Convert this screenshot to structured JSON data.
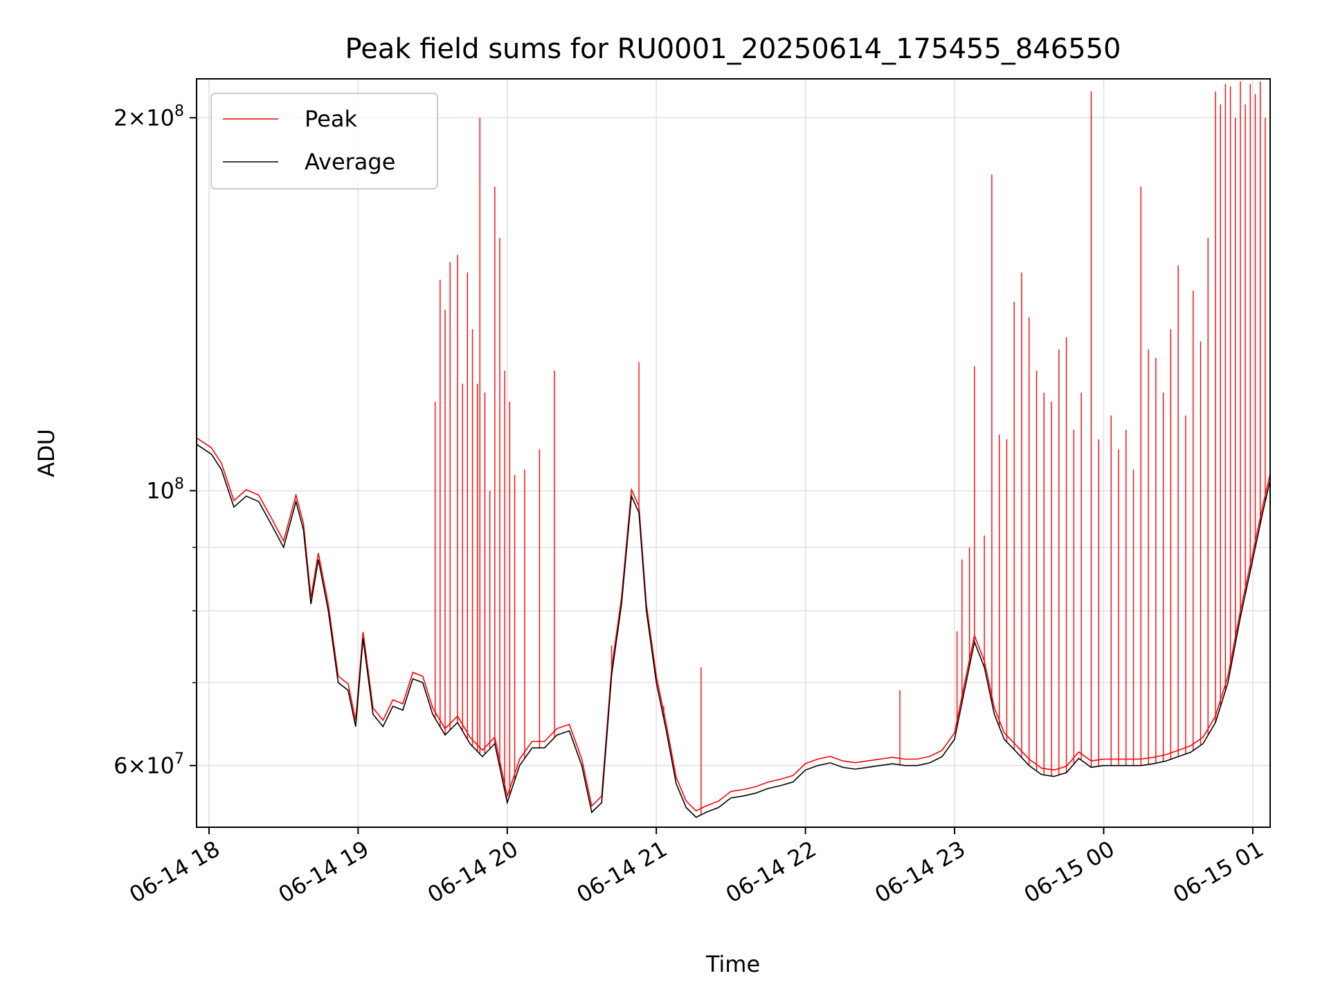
{
  "chart_data": {
    "type": "line",
    "title": "Peak field sums for RU0001_20250614_175455_846550",
    "xlabel": "Time",
    "ylabel": "ADU",
    "xlim": [
      "2025-06-14 17:55",
      "2025-06-15 01:07"
    ],
    "ylim": [
      53500000,
      215000000
    ],
    "yscale": "log",
    "grid": true,
    "legend_position": "top-left",
    "x_ticks": [
      {
        "t": "2025-06-14 18:00",
        "label": "06-14 18"
      },
      {
        "t": "2025-06-14 19:00",
        "label": "06-14 19"
      },
      {
        "t": "2025-06-14 20:00",
        "label": "06-14 20"
      },
      {
        "t": "2025-06-14 21:00",
        "label": "06-14 21"
      },
      {
        "t": "2025-06-14 22:00",
        "label": "06-14 22"
      },
      {
        "t": "2025-06-14 23:00",
        "label": "06-14 23"
      },
      {
        "t": "2025-06-15 00:00",
        "label": "06-15 00"
      },
      {
        "t": "2025-06-15 01:00",
        "label": "06-15 01"
      }
    ],
    "y_major_ticks": [
      {
        "v": 60000000,
        "mantissa": "6",
        "base": "10",
        "exp": "7"
      },
      {
        "v": 100000000,
        "mantissa": "",
        "base": "10",
        "exp": "8"
      },
      {
        "v": 200000000,
        "mantissa": "2",
        "base": "10",
        "exp": "8"
      }
    ],
    "y_minor_ticks": [
      70000000,
      80000000,
      90000000
    ],
    "colors": {
      "peak": "#ff0000",
      "average": "#000000",
      "grid": "#e0e0e0"
    },
    "series": [
      {
        "name": "Average",
        "color": "#000000",
        "points": [
          [
            "2025-06-14 17:55",
            109000000
          ],
          [
            "2025-06-14 17:58",
            108000000
          ],
          [
            "2025-06-14 18:01",
            107000000
          ],
          [
            "2025-06-14 18:05",
            104000000
          ],
          [
            "2025-06-14 18:10",
            97000000
          ],
          [
            "2025-06-14 18:15",
            99000000
          ],
          [
            "2025-06-14 18:20",
            98000000
          ],
          [
            "2025-06-14 18:25",
            94000000
          ],
          [
            "2025-06-14 18:30",
            90000000
          ],
          [
            "2025-06-14 18:35",
            98000000
          ],
          [
            "2025-06-14 18:38",
            93000000
          ],
          [
            "2025-06-14 18:41",
            81000000
          ],
          [
            "2025-06-14 18:44",
            88000000
          ],
          [
            "2025-06-14 18:48",
            80000000
          ],
          [
            "2025-06-14 18:52",
            70000000
          ],
          [
            "2025-06-14 18:56",
            69000000
          ],
          [
            "2025-06-14 18:59",
            64500000
          ],
          [
            "2025-06-14 19:02",
            76000000
          ],
          [
            "2025-06-14 19:06",
            66000000
          ],
          [
            "2025-06-14 19:10",
            64500000
          ],
          [
            "2025-06-14 19:14",
            67000000
          ],
          [
            "2025-06-14 19:18",
            66500000
          ],
          [
            "2025-06-14 19:22",
            70500000
          ],
          [
            "2025-06-14 19:26",
            70000000
          ],
          [
            "2025-06-14 19:30",
            66000000
          ],
          [
            "2025-06-14 19:35",
            63500000
          ],
          [
            "2025-06-14 19:40",
            65000000
          ],
          [
            "2025-06-14 19:45",
            62500000
          ],
          [
            "2025-06-14 19:50",
            61000000
          ],
          [
            "2025-06-14 19:55",
            62500000
          ],
          [
            "2025-06-14 20:00",
            56000000
          ],
          [
            "2025-06-14 20:05",
            60000000
          ],
          [
            "2025-06-14 20:10",
            62000000
          ],
          [
            "2025-06-14 20:15",
            62000000
          ],
          [
            "2025-06-14 20:20",
            63500000
          ],
          [
            "2025-06-14 20:25",
            64000000
          ],
          [
            "2025-06-14 20:30",
            60000000
          ],
          [
            "2025-06-14 20:34",
            55000000
          ],
          [
            "2025-06-14 20:38",
            56000000
          ],
          [
            "2025-06-14 20:42",
            71000000
          ],
          [
            "2025-06-14 20:46",
            81000000
          ],
          [
            "2025-06-14 20:50",
            99000000
          ],
          [
            "2025-06-14 20:53",
            96000000
          ],
          [
            "2025-06-14 20:56",
            80000000
          ],
          [
            "2025-06-14 21:00",
            70000000
          ],
          [
            "2025-06-14 21:04",
            64000000
          ],
          [
            "2025-06-14 21:08",
            58000000
          ],
          [
            "2025-06-14 21:12",
            55500000
          ],
          [
            "2025-06-14 21:16",
            54500000
          ],
          [
            "2025-06-14 21:20",
            55000000
          ],
          [
            "2025-06-14 21:25",
            55500000
          ],
          [
            "2025-06-14 21:30",
            56500000
          ],
          [
            "2025-06-14 21:35",
            56700000
          ],
          [
            "2025-06-14 21:40",
            57000000
          ],
          [
            "2025-06-14 21:45",
            57500000
          ],
          [
            "2025-06-14 21:50",
            57800000
          ],
          [
            "2025-06-14 21:55",
            58200000
          ],
          [
            "2025-06-14 22:00",
            59500000
          ],
          [
            "2025-06-14 22:05",
            60000000
          ],
          [
            "2025-06-14 22:10",
            60300000
          ],
          [
            "2025-06-14 22:15",
            59800000
          ],
          [
            "2025-06-14 22:20",
            59600000
          ],
          [
            "2025-06-14 22:25",
            59800000
          ],
          [
            "2025-06-14 22:30",
            60000000
          ],
          [
            "2025-06-14 22:35",
            60200000
          ],
          [
            "2025-06-14 22:40",
            60000000
          ],
          [
            "2025-06-14 22:45",
            60000000
          ],
          [
            "2025-06-14 22:50",
            60300000
          ],
          [
            "2025-06-14 22:55",
            61000000
          ],
          [
            "2025-06-14 23:00",
            63000000
          ],
          [
            "2025-06-14 23:04",
            69000000
          ],
          [
            "2025-06-14 23:08",
            75500000
          ],
          [
            "2025-06-14 23:12",
            72000000
          ],
          [
            "2025-06-14 23:16",
            66000000
          ],
          [
            "2025-06-14 23:20",
            63000000
          ],
          [
            "2025-06-14 23:25",
            61500000
          ],
          [
            "2025-06-14 23:30",
            60000000
          ],
          [
            "2025-06-14 23:35",
            59000000
          ],
          [
            "2025-06-14 23:40",
            58800000
          ],
          [
            "2025-06-14 23:45",
            59200000
          ],
          [
            "2025-06-14 23:50",
            60800000
          ],
          [
            "2025-06-14 23:55",
            59800000
          ],
          [
            "2025-06-15 00:00",
            60000000
          ],
          [
            "2025-06-15 00:05",
            60000000
          ],
          [
            "2025-06-15 00:10",
            60000000
          ],
          [
            "2025-06-15 00:15",
            60000000
          ],
          [
            "2025-06-15 00:20",
            60200000
          ],
          [
            "2025-06-15 00:25",
            60500000
          ],
          [
            "2025-06-15 00:30",
            61000000
          ],
          [
            "2025-06-15 00:35",
            61500000
          ],
          [
            "2025-06-15 00:40",
            62500000
          ],
          [
            "2025-06-15 00:45",
            65000000
          ],
          [
            "2025-06-15 00:50",
            70000000
          ],
          [
            "2025-06-15 00:55",
            79000000
          ],
          [
            "2025-06-15 01:00",
            88000000
          ],
          [
            "2025-06-15 01:04",
            96000000
          ],
          [
            "2025-06-15 01:07",
            102000000
          ]
        ]
      },
      {
        "name": "Peak",
        "color": "#ff0000",
        "spikes": [
          [
            "2025-06-14 19:31",
            118000000
          ],
          [
            "2025-06-14 19:33",
            148000000
          ],
          [
            "2025-06-14 19:35",
            140000000
          ],
          [
            "2025-06-14 19:37",
            153000000
          ],
          [
            "2025-06-14 19:40",
            155000000
          ],
          [
            "2025-06-14 19:42",
            122000000
          ],
          [
            "2025-06-14 19:44",
            150000000
          ],
          [
            "2025-06-14 19:46",
            135000000
          ],
          [
            "2025-06-14 19:48",
            122000000
          ],
          [
            "2025-06-14 19:49",
            200000000
          ],
          [
            "2025-06-14 19:51",
            120000000
          ],
          [
            "2025-06-14 19:53",
            100000000
          ],
          [
            "2025-06-14 19:55",
            176000000
          ],
          [
            "2025-06-14 19:57",
            160000000
          ],
          [
            "2025-06-14 19:59",
            125000000
          ],
          [
            "2025-06-14 20:01",
            118000000
          ],
          [
            "2025-06-14 20:03",
            103000000
          ],
          [
            "2025-06-14 20:07",
            104000000
          ],
          [
            "2025-06-14 20:13",
            108000000
          ],
          [
            "2025-06-14 20:19",
            125000000
          ],
          [
            "2025-06-14 20:42",
            75000000
          ],
          [
            "2025-06-14 20:53",
            127000000
          ],
          [
            "2025-06-14 21:03",
            67000000
          ],
          [
            "2025-06-14 21:18",
            72000000
          ],
          [
            "2025-06-14 22:38",
            69000000
          ],
          [
            "2025-06-14 23:01",
            77000000
          ],
          [
            "2025-06-14 23:03",
            88000000
          ],
          [
            "2025-06-14 23:06",
            90000000
          ],
          [
            "2025-06-14 23:08",
            126000000
          ],
          [
            "2025-06-14 23:12",
            92000000
          ],
          [
            "2025-06-14 23:15",
            180000000
          ],
          [
            "2025-06-14 23:18",
            111000000
          ],
          [
            "2025-06-14 23:21",
            110000000
          ],
          [
            "2025-06-14 23:24",
            142000000
          ],
          [
            "2025-06-14 23:27",
            150000000
          ],
          [
            "2025-06-14 23:30",
            138000000
          ],
          [
            "2025-06-14 23:33",
            125000000
          ],
          [
            "2025-06-14 23:36",
            120000000
          ],
          [
            "2025-06-14 23:39",
            118000000
          ],
          [
            "2025-06-14 23:42",
            130000000
          ],
          [
            "2025-06-14 23:45",
            133000000
          ],
          [
            "2025-06-14 23:48",
            112000000
          ],
          [
            "2025-06-14 23:51",
            120000000
          ],
          [
            "2025-06-14 23:55",
            210000000
          ],
          [
            "2025-06-14 23:58",
            110000000
          ],
          [
            "2025-06-15 00:03",
            115000000
          ],
          [
            "2025-06-15 00:06",
            108000000
          ],
          [
            "2025-06-15 00:09",
            112000000
          ],
          [
            "2025-06-15 00:12",
            104000000
          ],
          [
            "2025-06-15 00:15",
            176000000
          ],
          [
            "2025-06-15 00:18",
            130000000
          ],
          [
            "2025-06-15 00:21",
            128000000
          ],
          [
            "2025-06-15 00:24",
            120000000
          ],
          [
            "2025-06-15 00:27",
            135000000
          ],
          [
            "2025-06-15 00:30",
            152000000
          ],
          [
            "2025-06-15 00:33",
            115000000
          ],
          [
            "2025-06-15 00:36",
            145000000
          ],
          [
            "2025-06-15 00:39",
            132000000
          ],
          [
            "2025-06-15 00:42",
            160000000
          ],
          [
            "2025-06-15 00:45",
            210000000
          ],
          [
            "2025-06-15 00:47",
            205000000
          ],
          [
            "2025-06-15 00:49",
            213000000
          ],
          [
            "2025-06-15 00:51",
            212000000
          ],
          [
            "2025-06-15 00:53",
            200000000
          ],
          [
            "2025-06-15 00:55",
            214000000
          ],
          [
            "2025-06-15 00:57",
            205000000
          ],
          [
            "2025-06-15 00:59",
            213000000
          ],
          [
            "2025-06-15 01:01",
            209000000
          ],
          [
            "2025-06-15 01:03",
            214000000
          ],
          [
            "2025-06-15 01:05",
            200000000
          ],
          [
            "2025-06-15 01:07",
            195000000
          ]
        ]
      }
    ]
  }
}
